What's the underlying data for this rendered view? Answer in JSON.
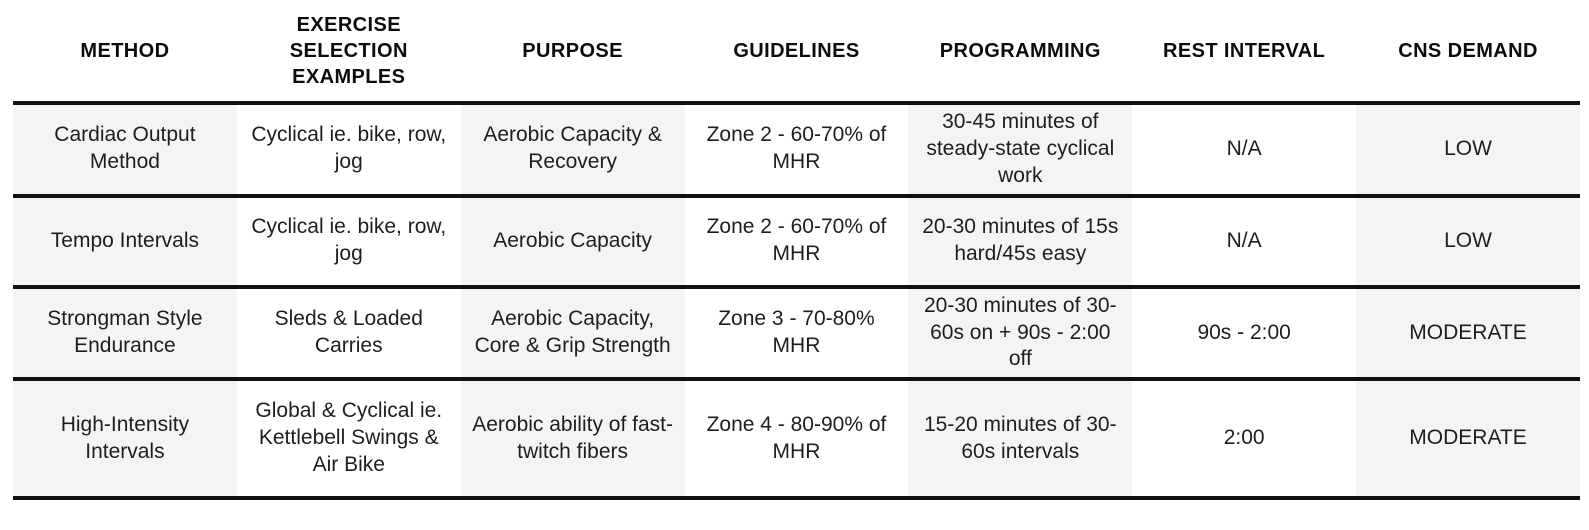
{
  "colors": {
    "background": "#ffffff",
    "column_shade": "#f4f4f4",
    "rule_line": "#111111",
    "text": "#1e1e1e"
  },
  "table": {
    "headers": {
      "method": "METHOD",
      "exercise_selection": "EXERCISE SELECTION EXAMPLES",
      "purpose": "PURPOSE",
      "guidelines": "GUIDELINES",
      "programming": "PROGRAMMING",
      "rest_interval": "REST INTERVAL",
      "cns_demand": "CNS DEMAND"
    },
    "rows": [
      {
        "method": "Cardiac Output Method",
        "exercise_selection": "Cyclical ie. bike, row, jog",
        "purpose": "Aerobic Capacity & Recovery",
        "guidelines": "Zone 2 - 60-70% of MHR",
        "programming": "30-45 minutes of steady-state cyclical work",
        "rest_interval": "N/A",
        "cns_demand": "LOW"
      },
      {
        "method": "Tempo Intervals",
        "exercise_selection": "Cyclical ie. bike, row, jog",
        "purpose": "Aerobic Capacity",
        "guidelines": "Zone 2 - 60-70% of MHR",
        "programming": "20-30 minutes of 15s hard/45s easy",
        "rest_interval": "N/A",
        "cns_demand": "LOW"
      },
      {
        "method": "Strongman Style Endurance",
        "exercise_selection": "Sleds & Loaded Carries",
        "purpose": "Aerobic Capacity, Core & Grip Strength",
        "guidelines": "Zone 3 - 70-80% MHR",
        "programming": "20-30 minutes of 30-60s on + 90s - 2:00 off",
        "rest_interval": "90s - 2:00",
        "cns_demand": "MODERATE"
      },
      {
        "method": "High-Intensity Intervals",
        "exercise_selection": "Global & Cyclical ie. Kettlebell Swings & Air Bike",
        "purpose": "Aerobic ability of fast-twitch fibers",
        "guidelines": "Zone 4 - 80-90% of MHR",
        "programming": "15-20 minutes of 30-60s intervals",
        "rest_interval": "2:00",
        "cns_demand": "MODERATE"
      }
    ]
  }
}
